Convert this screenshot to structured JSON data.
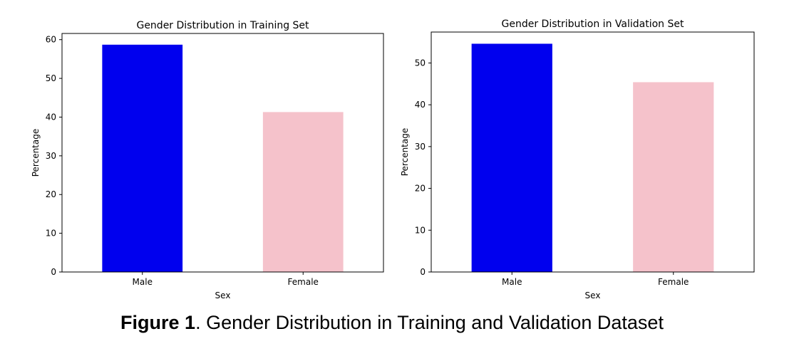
{
  "chart_data": [
    {
      "type": "bar",
      "title": "Gender Distribution in Training Set",
      "xlabel": "Sex",
      "ylabel": "Percentage",
      "categories": [
        "Male",
        "Female"
      ],
      "values": [
        58.7,
        41.3
      ],
      "colors": [
        "#0000ee",
        "#f5c2cb"
      ],
      "ylim": [
        0,
        61.6
      ],
      "yticks": [
        0,
        10,
        20,
        30,
        40,
        50,
        60
      ]
    },
    {
      "type": "bar",
      "title": "Gender Distribution in Validation Set",
      "xlabel": "Sex",
      "ylabel": "Percentage",
      "categories": [
        "Male",
        "Female"
      ],
      "values": [
        54.6,
        45.4
      ],
      "colors": [
        "#0000ee",
        "#f5c2cb"
      ],
      "ylim": [
        0,
        57.4
      ],
      "yticks": [
        0,
        10,
        20,
        30,
        40,
        50
      ]
    }
  ],
  "caption": {
    "label": "Figure 1",
    "text": ". Gender Distribution in Training and Validation Dataset"
  }
}
